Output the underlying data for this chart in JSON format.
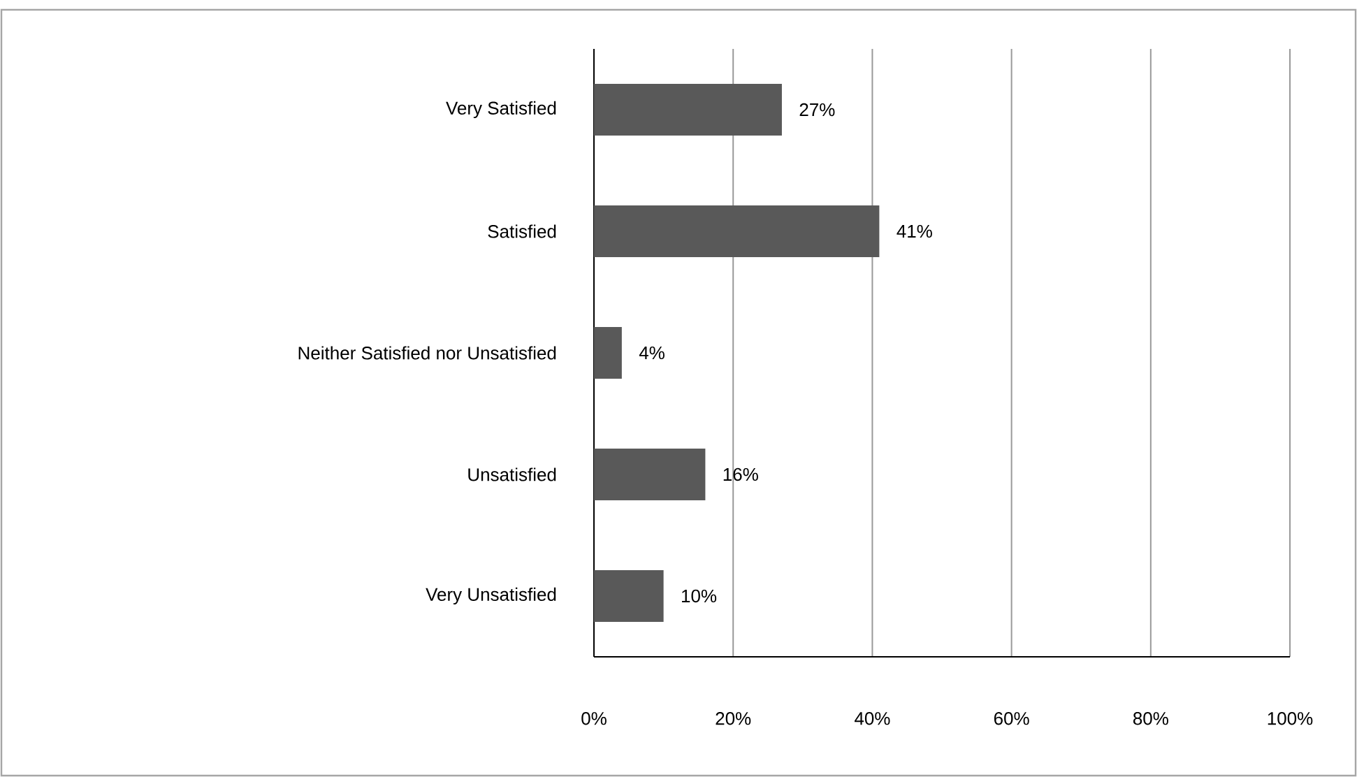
{
  "chart_data": {
    "type": "bar",
    "orientation": "horizontal",
    "categories": [
      "Very Satisfied",
      "Satisfied",
      "Neither Satisfied nor Unsatisfied",
      "Unsatisfied",
      "Very Unsatisfied"
    ],
    "values": [
      27,
      41,
      4,
      16,
      10
    ],
    "value_labels": [
      "27%",
      "41%",
      "4%",
      "16%",
      "10%"
    ],
    "color": "#595959",
    "xlim": [
      0,
      100
    ],
    "xticks": [
      {
        "value": 0,
        "label": "0%"
      },
      {
        "value": 20,
        "label": "20%"
      },
      {
        "value": 40,
        "label": "40%"
      },
      {
        "value": 60,
        "label": "60%"
      },
      {
        "value": 80,
        "label": "80%"
      },
      {
        "value": 100,
        "label": "100%"
      }
    ],
    "grid": "x"
  }
}
